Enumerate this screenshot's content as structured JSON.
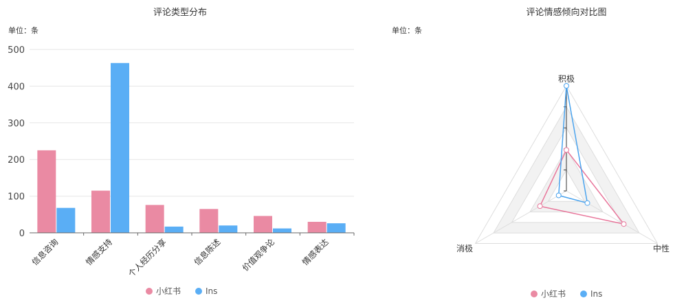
{
  "chart_data": [
    {
      "type": "bar",
      "title": "评论类型分布",
      "unit": "单位：条",
      "categories": [
        "信息咨询",
        "情感支持",
        "个人经历分享",
        "信息陈述",
        "价值观争论",
        "情感表达"
      ],
      "series": [
        {
          "name": "小红书",
          "values": [
            225,
            115,
            76,
            65,
            46,
            30
          ],
          "color": "#ea8aa3"
        },
        {
          "name": "Ins",
          "values": [
            68,
            463,
            17,
            20,
            12,
            26
          ],
          "color": "#5aaef5"
        }
      ],
      "yticks": [
        0,
        100,
        200,
        300,
        400,
        500
      ],
      "ylim": [
        0,
        500
      ],
      "grid": true,
      "legend": "bottom"
    },
    {
      "type": "radar",
      "title": "评论情感倾向对比图",
      "unit": "单位：条",
      "indicators": [
        "积极",
        "中性",
        "消极"
      ],
      "max": 1,
      "series": [
        {
          "name": "小红书",
          "values": [
            0.39,
            0.63,
            0.29
          ],
          "color": "#e8759a"
        },
        {
          "name": "Ins",
          "values": [
            1.0,
            0.23,
            0.085
          ],
          "color": "#4aa3ee"
        }
      ],
      "legend": "bottom"
    }
  ]
}
